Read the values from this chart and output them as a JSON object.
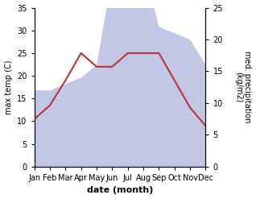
{
  "months": [
    "Jan",
    "Feb",
    "Mar",
    "Apr",
    "May",
    "Jun",
    "Jul",
    "Aug",
    "Sep",
    "Oct",
    "Nov",
    "Dec"
  ],
  "max_temp_C": [
    10.5,
    13.5,
    19,
    25,
    22,
    22,
    25,
    25,
    25,
    19,
    13,
    9
  ],
  "precipitation": [
    12,
    12,
    13,
    14,
    16,
    30,
    32,
    32,
    22,
    21,
    20,
    16
  ],
  "temp_ylim": [
    0,
    35
  ],
  "precip_ylim": [
    0,
    25
  ],
  "temp_color": "#bb3333",
  "precip_fill_color": "#aab0dd",
  "xlabel": "date (month)",
  "ylabel_left": "max temp (C)",
  "ylabel_right": "med. precipitation\n(kg/m2)",
  "temp_yticks": [
    0,
    5,
    10,
    15,
    20,
    25,
    30,
    35
  ],
  "precip_yticks": [
    0,
    5,
    10,
    15,
    20,
    25
  ],
  "precip_scale_factor": 1.4
}
